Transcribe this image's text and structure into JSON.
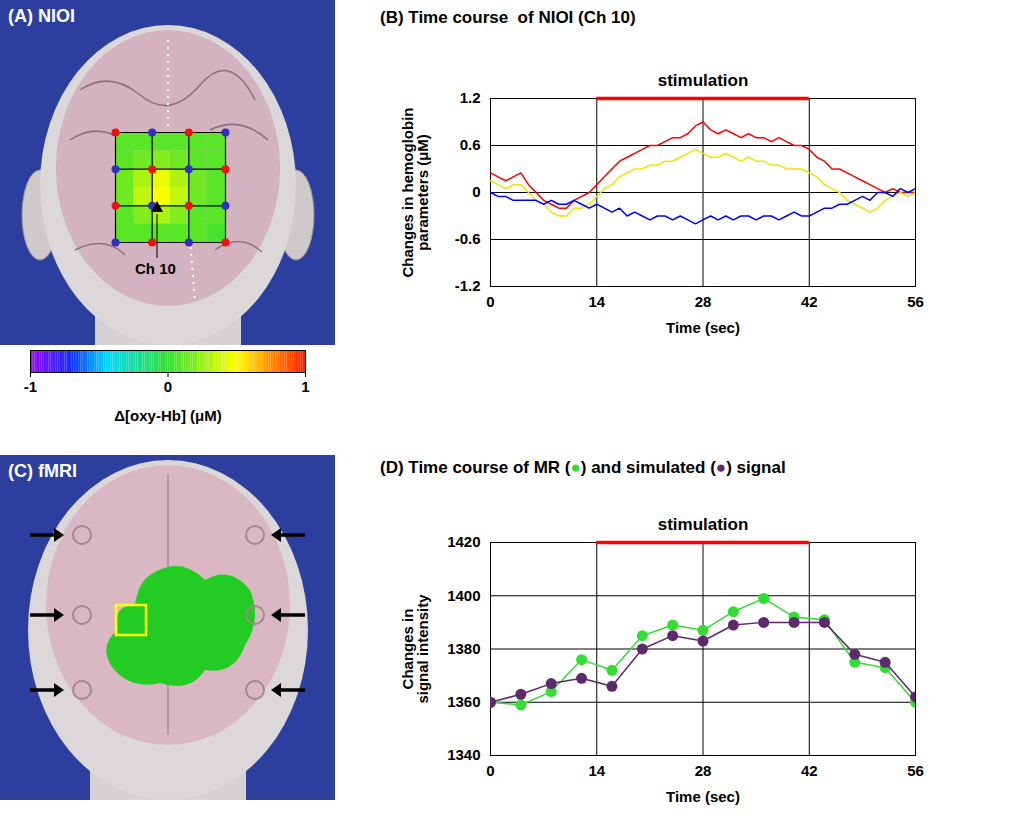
{
  "chart_data": [
    {
      "type": "heatmap",
      "title": "(A) NIOI",
      "tick_labels": false,
      "annotations": [
        {
          "text": "Ch 10"
        }
      ],
      "cells": [
        [
          0.1,
          0.1,
          0.1,
          0.1,
          0.1,
          0.1
        ],
        [
          0.1,
          0.15,
          0.2,
          0.15,
          0.1,
          0.1
        ],
        [
          0.15,
          0.3,
          0.45,
          0.3,
          0.15,
          0.1
        ],
        [
          0.15,
          0.35,
          0.5,
          0.35,
          0.15,
          0.1
        ],
        [
          0.1,
          0.2,
          0.3,
          0.2,
          0.1,
          0.1
        ],
        [
          0.1,
          0.1,
          0.1,
          0.1,
          0.1,
          0.05
        ]
      ],
      "colorbar": {
        "range": [
          -1,
          1
        ],
        "ticks": [
          -1,
          0,
          1
        ],
        "label": "Δ[oxy-Hb] (μM)"
      }
    },
    {
      "type": "line",
      "title": "(B) Time course  of NIOI (Ch 10)",
      "xlabel": "Time (sec)",
      "ylabel": "Changes in hemoglobin parameters (μM)",
      "x": [
        0,
        1,
        2,
        3,
        4,
        5,
        6,
        7,
        8,
        9,
        10,
        11,
        12,
        13,
        14,
        15,
        16,
        17,
        18,
        19,
        20,
        21,
        22,
        23,
        24,
        25,
        26,
        27,
        28,
        29,
        30,
        31,
        32,
        33,
        34,
        35,
        36,
        37,
        38,
        39,
        40,
        41,
        42,
        43,
        44,
        45,
        46,
        47,
        48,
        49,
        50,
        51,
        52,
        53,
        54,
        55,
        56
      ],
      "series": [
        {
          "color": "#ff0000",
          "values": [
            0.25,
            0.2,
            0.15,
            0.2,
            0.25,
            0.1,
            0,
            -0.1,
            -0.15,
            -0.2,
            -0.2,
            -0.1,
            -0.05,
            0,
            0.1,
            0.2,
            0.3,
            0.4,
            0.45,
            0.5,
            0.55,
            0.6,
            0.6,
            0.65,
            0.7,
            0.7,
            0.75,
            0.85,
            0.9,
            0.8,
            0.75,
            0.8,
            0.75,
            0.7,
            0.75,
            0.7,
            0.7,
            0.65,
            0.7,
            0.65,
            0.6,
            0.6,
            0.55,
            0.45,
            0.4,
            0.3,
            0.3,
            0.25,
            0.2,
            0.15,
            0.1,
            0.05,
            0,
            0.05,
            0,
            0,
            0
          ]
        },
        {
          "color": "#f2e200",
          "values": [
            0.15,
            0.1,
            0.05,
            0.1,
            0.1,
            0,
            -0.1,
            -0.15,
            -0.25,
            -0.3,
            -0.3,
            -0.2,
            -0.2,
            -0.15,
            -0.05,
            0.05,
            0.1,
            0.2,
            0.25,
            0.3,
            0.3,
            0.35,
            0.35,
            0.4,
            0.4,
            0.45,
            0.5,
            0.55,
            0.5,
            0.45,
            0.45,
            0.5,
            0.45,
            0.4,
            0.45,
            0.4,
            0.4,
            0.35,
            0.35,
            0.3,
            0.3,
            0.3,
            0.25,
            0.2,
            0.1,
            0.05,
            0,
            -0.1,
            -0.15,
            -0.2,
            -0.25,
            -0.2,
            -0.1,
            -0.05,
            0,
            -0.05,
            0
          ]
        },
        {
          "color": "#0000ff",
          "values": [
            0,
            -0.05,
            -0.05,
            -0.1,
            -0.1,
            -0.1,
            -0.1,
            -0.15,
            -0.1,
            -0.15,
            -0.15,
            -0.1,
            -0.15,
            -0.2,
            -0.15,
            -0.2,
            -0.25,
            -0.2,
            -0.3,
            -0.25,
            -0.3,
            -0.35,
            -0.3,
            -0.3,
            -0.35,
            -0.3,
            -0.35,
            -0.4,
            -0.35,
            -0.3,
            -0.35,
            -0.3,
            -0.35,
            -0.3,
            -0.3,
            -0.35,
            -0.3,
            -0.3,
            -0.35,
            -0.3,
            -0.25,
            -0.3,
            -0.3,
            -0.25,
            -0.2,
            -0.2,
            -0.15,
            -0.15,
            -0.1,
            -0.05,
            -0.1,
            0,
            0,
            -0.05,
            0.05,
            0,
            0.05
          ]
        }
      ],
      "xlim": [
        0,
        56
      ],
      "xticks": [
        0,
        14,
        28,
        42,
        56
      ],
      "ylim": [
        -1.2,
        1.2
      ],
      "yticks": [
        -1.2,
        -0.6,
        0,
        0.6,
        1.2
      ],
      "grid": true,
      "annotations": [
        {
          "text": "stimulation",
          "x": [
            14,
            42
          ],
          "color": "#ff0000"
        }
      ]
    },
    {
      "type": "image",
      "title": "(C) fMRI"
    },
    {
      "type": "line",
      "title": "(D) Time course of MR (●) and simulated (●) signal",
      "xlabel": "Time (sec)",
      "ylabel": "Changes in signal intensity",
      "x": [
        0,
        4,
        8,
        12,
        16,
        20,
        24,
        28,
        32,
        36,
        40,
        44,
        48,
        52,
        56
      ],
      "series": [
        {
          "color": "#33dd33",
          "values": [
            1360,
            1359,
            1364,
            1376,
            1372,
            1385,
            1389,
            1387,
            1394,
            1399,
            1392,
            1391,
            1375,
            1373,
            1360
          ]
        },
        {
          "color": "#5e2a6e",
          "values": [
            1360,
            1363,
            1367,
            1369,
            1366,
            1380,
            1385,
            1383,
            1389,
            1390,
            1390,
            1390,
            1378,
            1375,
            1362
          ]
        }
      ],
      "marker": "circle",
      "xlim": [
        0,
        56
      ],
      "xticks": [
        0,
        14,
        28,
        42,
        56
      ],
      "ylim": [
        1340,
        1420
      ],
      "yticks": [
        1340,
        1360,
        1380,
        1400,
        1420
      ],
      "grid": true,
      "annotations": [
        {
          "text": "stimulation",
          "x": [
            14,
            42
          ],
          "color": "#ff0000"
        }
      ]
    }
  ]
}
